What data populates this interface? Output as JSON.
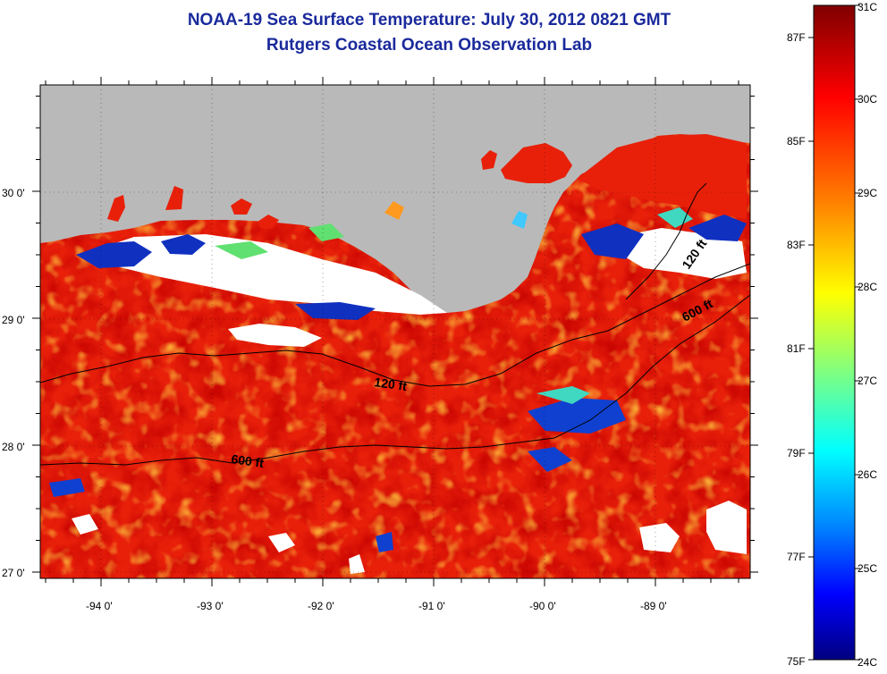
{
  "header": {
    "title": "NOAA-19 Sea Surface Temperature:  July 30, 2012 0821 GMT",
    "subtitle": "Rutgers Coastal Ocean Observation Lab"
  },
  "map": {
    "lon_labels": [
      "-94 0'",
      "-93 0'",
      "-92 0'",
      "-91 0'",
      "-90 0'",
      "-89 0'"
    ],
    "lat_labels": [
      "30 0'",
      "29 0'",
      "28 0'",
      "27 0'"
    ],
    "contour_labels": [
      "120 ft",
      "600 ft",
      "600 ft",
      "120 ft"
    ],
    "colors": {
      "land": "#b9b9b9",
      "cloud": "#ffffff",
      "warm_sea": "#e8200a"
    }
  },
  "colorbar": {
    "fahrenheit_labels": [
      "87F",
      "85F",
      "83F",
      "81F",
      "79F",
      "77F",
      "75F"
    ],
    "celsius_labels": [
      "31C",
      "30C",
      "29C",
      "28C",
      "27C",
      "26C",
      "25C",
      "24C"
    ],
    "gradient": [
      "#7f0000",
      "#ff0000",
      "#ff8000",
      "#ffff00",
      "#80ff80",
      "#00ffff",
      "#0080ff",
      "#0000ff",
      "#00007f"
    ]
  }
}
